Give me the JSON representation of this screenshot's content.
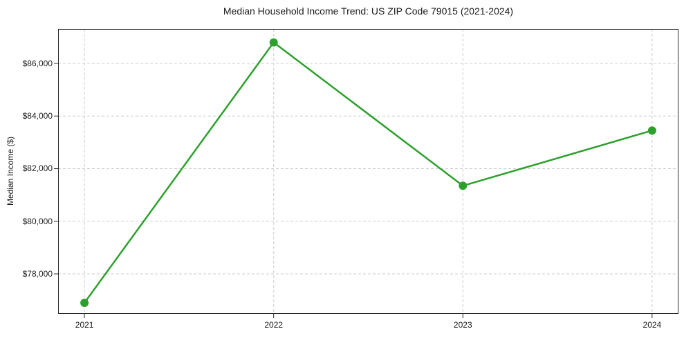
{
  "figure": {
    "background": "#ffffff",
    "text_color": "#1a1a1a"
  },
  "chart_data": {
    "type": "line",
    "title": "Median Household Income Trend: US ZIP Code 79015 (2021-2024)",
    "xlabel": "",
    "ylabel": "Median Income ($)",
    "categories": [
      "2021",
      "2022",
      "2023",
      "2024"
    ],
    "series": [
      {
        "name": "median-household-income",
        "values": [
          76900,
          86800,
          81350,
          83450
        ],
        "color": "#2ca02c",
        "marker": "circle"
      }
    ],
    "ylim": [
      76480,
      87310
    ],
    "yticks": [
      {
        "value": 78000,
        "label": "$78,000"
      },
      {
        "value": 80000,
        "label": "$80,000"
      },
      {
        "value": 82000,
        "label": "$82,000"
      },
      {
        "value": 84000,
        "label": "$84,000"
      },
      {
        "value": 86000,
        "label": "$86,000"
      }
    ],
    "grid": true,
    "grid_style": "dashed",
    "grid_color": "#cccccc",
    "spine_color": "#262626",
    "legend": "none"
  }
}
